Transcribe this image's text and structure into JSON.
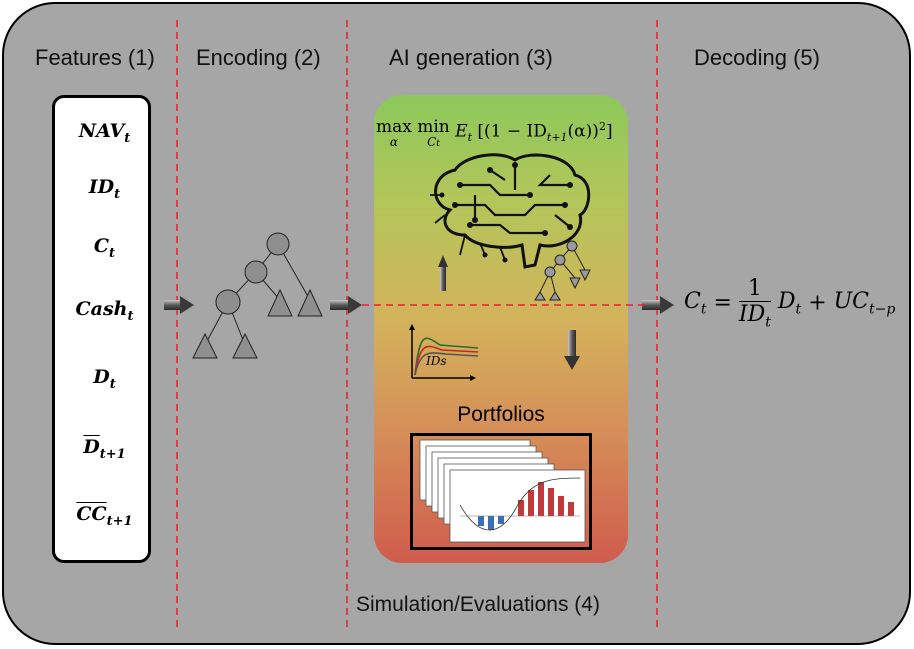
{
  "phases": [
    {
      "id": "features",
      "title": "Features (1)"
    },
    {
      "id": "encoding",
      "title": "Encoding (2)"
    },
    {
      "id": "ai_generation",
      "title": "AI generation (3)"
    },
    {
      "id": "decoding",
      "title": "Decoding (5)"
    }
  ],
  "simulation_label": "Simulation/Evaluations (4)",
  "features": [
    {
      "base": "NAV",
      "sub": "t",
      "hat": false
    },
    {
      "base": "ID",
      "sub": "t",
      "hat": false
    },
    {
      "base": "C",
      "sub": "t",
      "hat": false
    },
    {
      "base": "Cash",
      "sub": "t",
      "hat": false
    },
    {
      "base": "D",
      "sub": "t",
      "hat": false
    },
    {
      "base": "D",
      "sub": "t+1",
      "hat": true
    },
    {
      "base": "CC",
      "sub": "t+1",
      "hat": true
    }
  ],
  "ai_panel": {
    "objective": {
      "max": "max",
      "max_sub": "α",
      "min": "min",
      "min_sub": "C",
      "min_sub_sub": "t",
      "body": "E",
      "body_sub": "t",
      "bracket_open": "[(1 − ID",
      "id_sub": "t+1",
      "alpha": "(α))",
      "power": "2",
      "bracket_close": "]"
    },
    "chart_axis_label": "IDs",
    "portfolios_title": "Portfolios"
  },
  "decoding_formula": {
    "lhs": "C",
    "lhs_sub": "t",
    "eq": "=",
    "num": "1",
    "den": "ID",
    "den_sub": "t",
    "term1": "D",
    "term1_sub": "t",
    "plus": "+",
    "term2": "UC",
    "term2_sub": "t−p"
  },
  "colors": {
    "background": "#a6a6a6",
    "divider": "#e8222a",
    "panel_top": "#8cc85a",
    "panel_bottom": "#cf5c4c"
  }
}
